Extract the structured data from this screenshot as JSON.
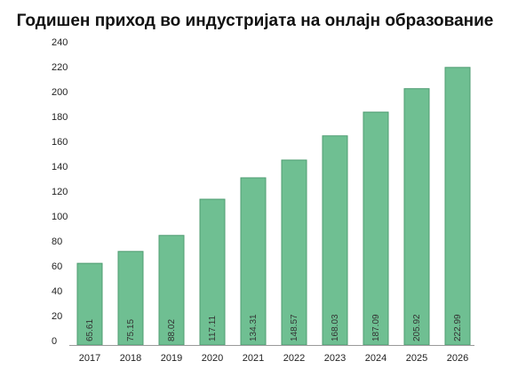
{
  "chart_data": {
    "type": "bar",
    "title": "Годишен приход во индустријата на онлајн образование",
    "xlabel": "",
    "ylabel": "",
    "categories": [
      "2017",
      "2018",
      "2019",
      "2020",
      "2021",
      "2022",
      "2023",
      "2024",
      "2025",
      "2026"
    ],
    "values": [
      65.61,
      75.15,
      88.02,
      117.11,
      134.31,
      148.57,
      168.03,
      187.09,
      205.92,
      222.99
    ],
    "value_labels": [
      "65.61",
      "75.15",
      "88.02",
      "117.11",
      "134.31",
      "148.57",
      "168.03",
      "187.09",
      "205.92",
      "222.99"
    ],
    "ylim": [
      0,
      240
    ],
    "yticks": [
      0,
      20,
      40,
      60,
      80,
      100,
      120,
      140,
      160,
      180,
      200,
      220,
      240
    ],
    "grid": false,
    "legend": "none",
    "colors": {
      "bar_fill": "#6fbf92",
      "bar_stroke": "#4f9c72",
      "axis": "#9a9a9a",
      "text": "#222222"
    }
  }
}
